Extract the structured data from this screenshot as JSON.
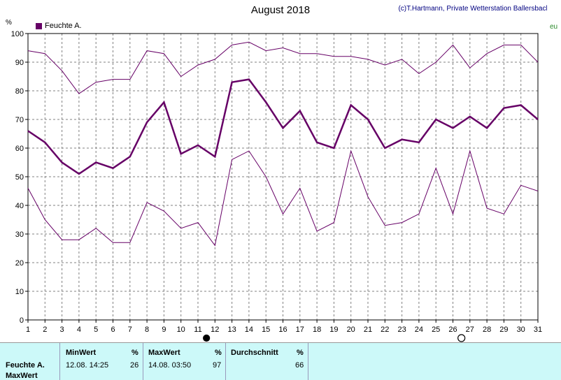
{
  "header": {
    "title": "August 2018",
    "copyright": "(c)T.Hartmann, Private Wetterstation Ballersbach",
    "unit": "%",
    "right_fragment": "eu"
  },
  "chart_data": {
    "type": "line",
    "title": "August 2018",
    "ylabel": "%",
    "ylim": [
      0,
      100
    ],
    "yticks": [
      0,
      10,
      20,
      30,
      40,
      50,
      60,
      70,
      80,
      90,
      100
    ],
    "x": [
      1,
      2,
      3,
      4,
      5,
      6,
      7,
      8,
      9,
      10,
      11,
      12,
      13,
      14,
      15,
      16,
      17,
      18,
      19,
      20,
      21,
      22,
      23,
      24,
      25,
      26,
      27,
      28,
      29,
      30,
      31
    ],
    "grid": true,
    "legend_position": "top-left",
    "legend": [
      "Feuchte A."
    ],
    "colors": {
      "series": "#660066",
      "grid": "#808080",
      "axis": "#000000"
    },
    "series": [
      {
        "name": "Feuchte A.",
        "role": "mean",
        "values": [
          66,
          62,
          55,
          51,
          55,
          53,
          57,
          69,
          76,
          58,
          61,
          57,
          83,
          84,
          76,
          67,
          73,
          62,
          60,
          75,
          70,
          60,
          63,
          62,
          70,
          67,
          71,
          67,
          74,
          75,
          70
        ]
      },
      {
        "role": "max",
        "values": [
          94,
          93,
          87,
          79,
          83,
          84,
          84,
          94,
          93,
          85,
          89,
          91,
          96,
          97,
          94,
          95,
          93,
          93,
          92,
          92,
          91,
          89,
          91,
          86,
          90,
          96,
          88,
          93,
          96,
          96,
          90
        ]
      },
      {
        "role": "min",
        "values": [
          46,
          35,
          28,
          28,
          32,
          27,
          27,
          41,
          38,
          32,
          34,
          26,
          56,
          59,
          50,
          37,
          46,
          31,
          34,
          59,
          43,
          33,
          34,
          37,
          53,
          37,
          59,
          39,
          37,
          47,
          45
        ]
      }
    ],
    "moon_markers": [
      {
        "day": 11,
        "phase": "new moon"
      },
      {
        "day": 26,
        "phase": "full moon"
      }
    ]
  },
  "stats": {
    "row_labels": [
      "Feuchte A.",
      "MaxWert"
    ],
    "min": {
      "header": "MinWert",
      "unit": "%",
      "datetime": "12.08.  14:25",
      "value": "26"
    },
    "max": {
      "header": "MaxWert",
      "unit": "%",
      "datetime": "14.08.  03:50",
      "value": "97"
    },
    "avg": {
      "header": "Durchschnitt",
      "unit": "%",
      "value": "66"
    }
  }
}
